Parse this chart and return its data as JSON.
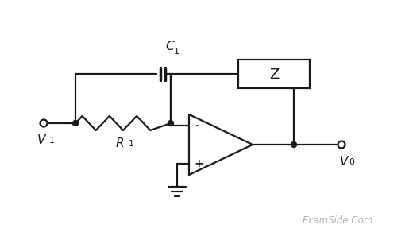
{
  "fig_width": 5.15,
  "fig_height": 3.02,
  "dpi": 100,
  "bg_color": "#ffffff",
  "line_color": "#1a1a1a",
  "watermark_color": "#b0b0b0",
  "watermark_text": "ExamSide.Com",
  "v1_label": "V",
  "v1_sub": "1",
  "v0_label": "V",
  "v0_sub": "0",
  "c1_label": "C",
  "c1_sub": "1",
  "r1_label": "R",
  "r1_sub": "1",
  "z_label": "Z",
  "minus_label": "-",
  "plus_label": "+"
}
